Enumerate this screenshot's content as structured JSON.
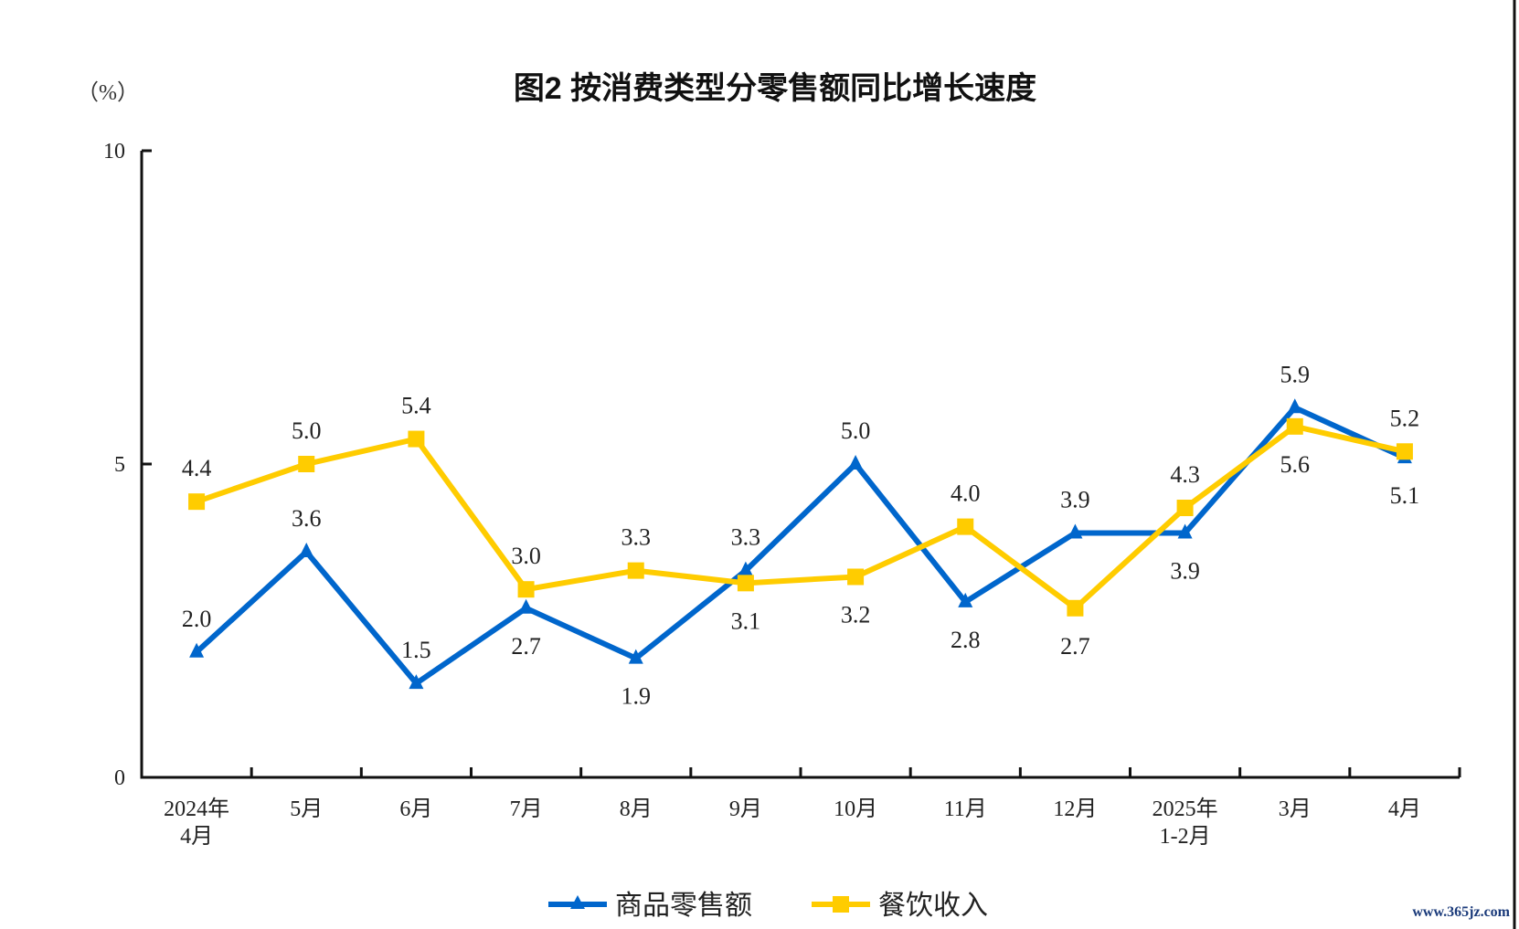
{
  "chart_data": {
    "type": "line",
    "title": "图2  按消费类型分零售额同比增长速度",
    "unit_label": "（%）",
    "xlabel": "",
    "ylabel": "（%）",
    "ylim": [
      0,
      10
    ],
    "yticks": [
      "0",
      "5",
      "10"
    ],
    "ytick_values": [
      0,
      5,
      10
    ],
    "grid": false,
    "legend_position": "bottom",
    "categories": [
      [
        "2024年",
        "4月"
      ],
      [
        "5月"
      ],
      [
        "6月"
      ],
      [
        "7月"
      ],
      [
        "8月"
      ],
      [
        "9月"
      ],
      [
        "10月"
      ],
      [
        "11月"
      ],
      [
        "12月"
      ],
      [
        "2025年",
        "1-2月"
      ],
      [
        "3月"
      ],
      [
        "4月"
      ]
    ],
    "series": [
      {
        "name": "商品零售额",
        "color": "#0066cc",
        "marker": "triangle",
        "values": [
          2.0,
          3.6,
          1.5,
          2.7,
          1.9,
          3.3,
          5.0,
          2.8,
          3.9,
          3.9,
          5.9,
          5.1
        ],
        "labels": [
          "2.0",
          "3.6",
          "1.5",
          "2.7",
          "1.9",
          "3.3",
          "5.0",
          "2.8",
          "3.9",
          "3.9",
          "5.9",
          "5.1"
        ],
        "label_pos": [
          "above",
          "above",
          "above",
          "below",
          "below",
          "above",
          "above",
          "below",
          "above",
          "below",
          "above",
          "below"
        ]
      },
      {
        "name": "餐饮收入",
        "color": "#ffcc00",
        "marker": "square",
        "values": [
          4.4,
          5.0,
          5.4,
          3.0,
          3.3,
          3.1,
          3.2,
          4.0,
          2.7,
          4.3,
          5.6,
          5.2
        ],
        "labels": [
          "4.4",
          "5.0",
          "5.4",
          "3.0",
          "3.3",
          "3.1",
          "3.2",
          "4.0",
          "2.7",
          "4.3",
          "5.6",
          "5.2"
        ],
        "label_pos": [
          "above",
          "above",
          "above",
          "above",
          "above",
          "below",
          "below",
          "above",
          "below",
          "above",
          "below",
          "above"
        ]
      }
    ]
  },
  "watermark": "www.365jz.com"
}
